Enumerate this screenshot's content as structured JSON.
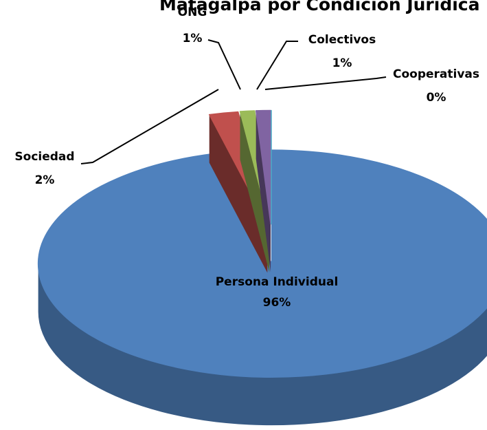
{
  "chart_data": {
    "type": "pie",
    "title": "Matagalpa por Condición Jurídica",
    "categories": [
      "Persona Individual",
      "Sociedad",
      "ONG",
      "Colectivos",
      "Cooperativas"
    ],
    "values": [
      96,
      2,
      1,
      1,
      0
    ],
    "value_labels": [
      "96%",
      "2%",
      "1%",
      "1%",
      "0%"
    ],
    "colors": [
      "#4f81bd",
      "#c0504d",
      "#9bbb59",
      "#8064a2",
      "#4bacc6"
    ]
  }
}
